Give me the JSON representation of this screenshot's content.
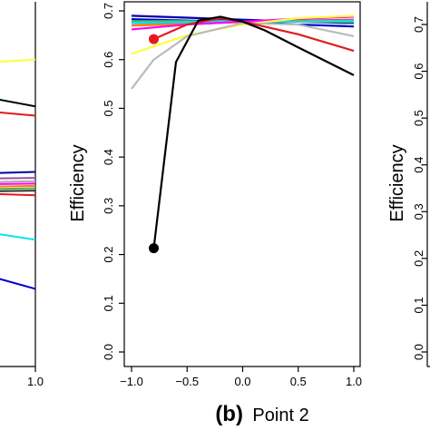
{
  "chart_data": [
    {
      "type": "line",
      "panel": "a",
      "partial": true,
      "xlim": [
        -1.0,
        1.0
      ],
      "ylim": [
        0.0,
        0.7
      ],
      "x_tick_labels": [
        "1.0"
      ],
      "series": [
        {
          "color": "#ffff33",
          "x": [
            0.6,
            1.0
          ],
          "y": [
            0.615,
            0.625
          ]
        },
        {
          "color": "#000000",
          "x": [
            0.6,
            1.0
          ],
          "y": [
            0.555,
            0.525
          ]
        },
        {
          "color": "#e41a1c",
          "x": [
            0.6,
            1.0
          ],
          "y": [
            0.52,
            0.505
          ]
        },
        {
          "color": "#0000aa",
          "x": [
            0.6,
            1.0
          ],
          "y": [
            0.38,
            0.385
          ]
        },
        {
          "color": "#984ea3",
          "x": [
            0.6,
            1.0
          ],
          "y": [
            0.37,
            0.372
          ]
        },
        {
          "color": "#aaaaaa",
          "x": [
            0.6,
            1.0
          ],
          "y": [
            0.362,
            0.365
          ]
        },
        {
          "color": "#ff00ff",
          "x": [
            0.6,
            1.0
          ],
          "y": [
            0.358,
            0.36
          ]
        },
        {
          "color": "#ff7f00",
          "x": [
            0.6,
            1.0
          ],
          "y": [
            0.352,
            0.355
          ]
        },
        {
          "color": "#4daf4a",
          "x": [
            0.6,
            1.0
          ],
          "y": [
            0.347,
            0.35
          ]
        },
        {
          "color": "#333333",
          "x": [
            0.6,
            1.0
          ],
          "y": [
            0.342,
            0.345
          ]
        },
        {
          "color": "#e41a1c",
          "x": [
            0.6,
            1.0
          ],
          "y": [
            0.34,
            0.335
          ]
        },
        {
          "color": "#00e5ee",
          "x": [
            0.6,
            1.0
          ],
          "y": [
            0.265,
            0.24
          ]
        },
        {
          "color": "#0000cd",
          "x": [
            0.6,
            1.0
          ],
          "y": [
            0.18,
            0.135
          ]
        }
      ]
    },
    {
      "type": "line",
      "panel": "b",
      "caption_label": "(b)",
      "caption_text": "Point 2",
      "ylabel": "Efficiency",
      "xlim": [
        -1.0,
        1.0
      ],
      "ylim": [
        0.0,
        0.7
      ],
      "x_ticks": [
        -1.0,
        -0.5,
        0.0,
        0.5,
        1.0
      ],
      "x_tick_labels": [
        "−1.0",
        "−0.5",
        "0.0",
        "0.5",
        "1.0"
      ],
      "y_ticks": [
        0.0,
        0.1,
        0.2,
        0.3,
        0.4,
        0.5,
        0.6,
        0.7
      ],
      "y_tick_labels": [
        "0.0",
        "0.1",
        "0.2",
        "0.3",
        "0.4",
        "0.5",
        "0.6",
        "0.7"
      ],
      "series": [
        {
          "color": "#0000aa",
          "x": [
            -1.0,
            -0.5,
            0.0,
            0.5,
            1.0
          ],
          "y": [
            0.69,
            0.686,
            0.682,
            0.678,
            0.675
          ]
        },
        {
          "color": "#0000cd",
          "x": [
            -1.0,
            -0.5,
            0.0,
            0.5,
            1.0
          ],
          "y": [
            0.683,
            0.68,
            0.678,
            0.672,
            0.668
          ]
        },
        {
          "color": "#984ea3",
          "x": [
            -1.0,
            -0.5,
            0.0,
            0.5,
            1.0
          ],
          "y": [
            0.675,
            0.676,
            0.678,
            0.68,
            0.682
          ]
        },
        {
          "color": "#4daf4a",
          "x": [
            -1.0,
            -0.5,
            0.0,
            0.5,
            1.0
          ],
          "y": [
            0.679,
            0.679,
            0.678,
            0.678,
            0.677
          ]
        },
        {
          "color": "#ff7f00",
          "x": [
            -1.0,
            -0.5,
            0.0,
            0.5,
            1.0
          ],
          "y": [
            0.67,
            0.673,
            0.677,
            0.679,
            0.68
          ]
        },
        {
          "color": "#00e5ee",
          "x": [
            -1.0,
            -0.5,
            0.0,
            0.5,
            1.0
          ],
          "y": [
            0.676,
            0.677,
            0.678,
            0.678,
            0.679
          ]
        },
        {
          "color": "#ff00ff",
          "x": [
            -1.0,
            -0.5,
            0.0,
            0.5,
            1.0
          ],
          "y": [
            0.662,
            0.672,
            0.678,
            0.684,
            0.688
          ]
        },
        {
          "color": "#ffff33",
          "x": [
            -1.0,
            -0.5,
            0.0,
            0.5,
            1.0
          ],
          "y": [
            0.612,
            0.65,
            0.672,
            0.685,
            0.69
          ]
        },
        {
          "color": "#bbbbbb",
          "x": [
            -1.0,
            -0.8,
            -0.5,
            0.0,
            0.5,
            1.0
          ],
          "y": [
            0.54,
            0.6,
            0.648,
            0.675,
            0.672,
            0.648
          ]
        },
        {
          "color": "#e41a1c",
          "x": [
            -0.8,
            -0.5,
            -0.2,
            0.0,
            0.5,
            1.0
          ],
          "y": [
            0.642,
            0.672,
            0.685,
            0.678,
            0.652,
            0.618
          ]
        },
        {
          "color": "#000000",
          "x": [
            -0.8,
            -0.6,
            -0.4,
            -0.2,
            0.0,
            0.2,
            0.5,
            1.0
          ],
          "y": [
            0.213,
            0.595,
            0.68,
            0.688,
            0.678,
            0.66,
            0.625,
            0.568
          ]
        }
      ],
      "markers": [
        {
          "color": "#000000",
          "x": -0.8,
          "y": 0.213
        },
        {
          "color": "#e41a1c",
          "x": -0.8,
          "y": 0.642
        }
      ]
    },
    {
      "type": "line",
      "panel": "c",
      "partial": true,
      "ylabel": "Efficiency",
      "ylim": [
        0.0,
        0.7
      ],
      "y_ticks": [
        0.0,
        0.1,
        0.2,
        0.3,
        0.4,
        0.5,
        0.6,
        0.7
      ],
      "y_tick_labels": [
        "0.0",
        "0.1",
        "0.2",
        "0.3",
        "0.4",
        "0.5",
        "0.6",
        "0.7"
      ]
    }
  ]
}
